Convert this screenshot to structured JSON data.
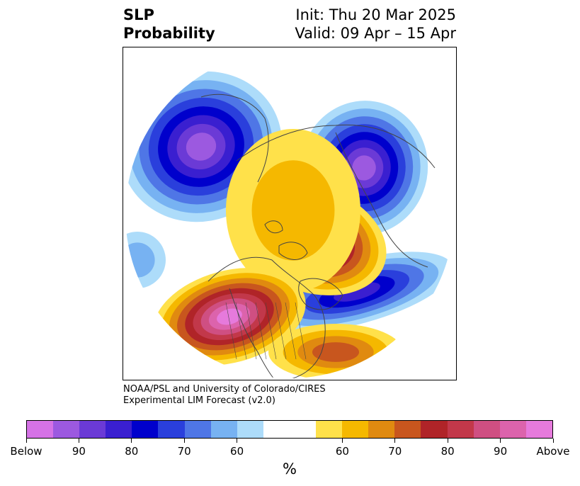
{
  "title": {
    "left_line1": "SLP",
    "left_line2": "Probability",
    "right_line1": "Init: Thu 20 Mar 2025",
    "right_line2": "Valid: 09 Apr – 15 Apr"
  },
  "credit": {
    "line1": "NOAA/PSL and University of Colorado/CIRES",
    "line2": "Experimental LIM Forecast (v2.0)"
  },
  "colorbar": {
    "unit": "%",
    "below_colors": [
      "#d572e6",
      "#9c59e0",
      "#6b3ad6",
      "#3a1fd0",
      "#0000cc",
      "#2a3fdc",
      "#4f76e6",
      "#77b2f2",
      "#addcfa"
    ],
    "neutral_color": "#ffffff",
    "above_colors": [
      "#ffe14a",
      "#f5b800",
      "#e08a10",
      "#c8561e",
      "#b02428",
      "#c2384a",
      "#cf4f82",
      "#dc63ac",
      "#e67adc"
    ],
    "ticks": [
      {
        "label": "Below"
      },
      {
        "label": "90"
      },
      {
        "label": "80"
      },
      {
        "label": "70"
      },
      {
        "label": "60"
      },
      {
        "label": "60"
      },
      {
        "label": "70"
      },
      {
        "label": "80"
      },
      {
        "label": "90"
      },
      {
        "label": "Above"
      }
    ]
  },
  "map": {
    "projection": "north-polar-stereographic",
    "land_outline_color": "#444444"
  }
}
